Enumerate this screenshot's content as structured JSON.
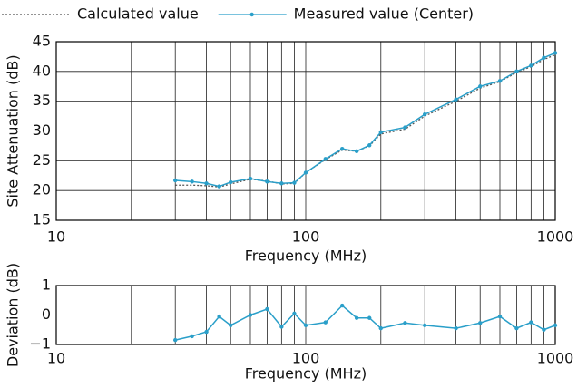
{
  "chart_data": [
    {
      "type": "line",
      "x": [
        30,
        35,
        40,
        45,
        50,
        60,
        70,
        80,
        90,
        100,
        120,
        140,
        160,
        180,
        200,
        250,
        300,
        400,
        500,
        600,
        700,
        800,
        900,
        1000
      ],
      "series": [
        {
          "name": "Calculated value",
          "color": "#555555",
          "dash": "dotted",
          "marker": false,
          "values": [
            20.9,
            20.9,
            20.8,
            20.6,
            21.1,
            21.9,
            21.6,
            21.1,
            21.2,
            23.0,
            25.2,
            26.8,
            26.6,
            27.5,
            29.5,
            30.3,
            32.5,
            35.0,
            37.2,
            38.3,
            39.8,
            40.8,
            42.0,
            42.8
          ]
        },
        {
          "name": "Measured value (Center)",
          "color": "#2a9fc9",
          "dash": "solid",
          "marker": true,
          "values": [
            21.7,
            21.5,
            21.2,
            20.7,
            21.4,
            22.0,
            21.5,
            21.2,
            21.3,
            23.0,
            25.3,
            27.0,
            26.6,
            27.6,
            29.8,
            30.6,
            32.8,
            35.3,
            37.5,
            38.4,
            40.0,
            41.0,
            42.3,
            43.1
          ]
        }
      ],
      "xlabel": "Frequency (MHz)",
      "ylabel": "Site Attenuation (dB)",
      "xscale": "log",
      "xlim": [
        10,
        1000
      ],
      "xticks": [
        10,
        100,
        1000
      ],
      "ylim": [
        15,
        45
      ],
      "yticks": [
        15,
        20,
        25,
        30,
        35,
        40,
        45
      ],
      "grid": true,
      "legend": "top"
    },
    {
      "type": "line",
      "x": [
        30,
        35,
        40,
        45,
        50,
        60,
        70,
        80,
        90,
        100,
        120,
        140,
        160,
        180,
        200,
        250,
        300,
        400,
        500,
        600,
        700,
        800,
        900,
        1000
      ],
      "series": [
        {
          "color": "#2a9fc9",
          "dash": "solid",
          "marker": true,
          "values": [
            -0.85,
            -0.72,
            -0.57,
            -0.05,
            -0.35,
            0.0,
            0.2,
            -0.4,
            0.05,
            -0.35,
            -0.25,
            0.32,
            -0.1,
            -0.1,
            -0.45,
            -0.27,
            -0.35,
            -0.45,
            -0.27,
            -0.05,
            -0.45,
            -0.25,
            -0.5,
            -0.35
          ]
        }
      ],
      "xlabel": "Frequency (MHz)",
      "ylabel": "Deviation (dB)",
      "xscale": "log",
      "xlim": [
        10,
        1000
      ],
      "xticks": [
        10,
        100,
        1000
      ],
      "ylim": [
        -1,
        1
      ],
      "yticks": [
        {
          "value": -1,
          "label": "−1"
        },
        0,
        1
      ],
      "grid": true
    }
  ]
}
